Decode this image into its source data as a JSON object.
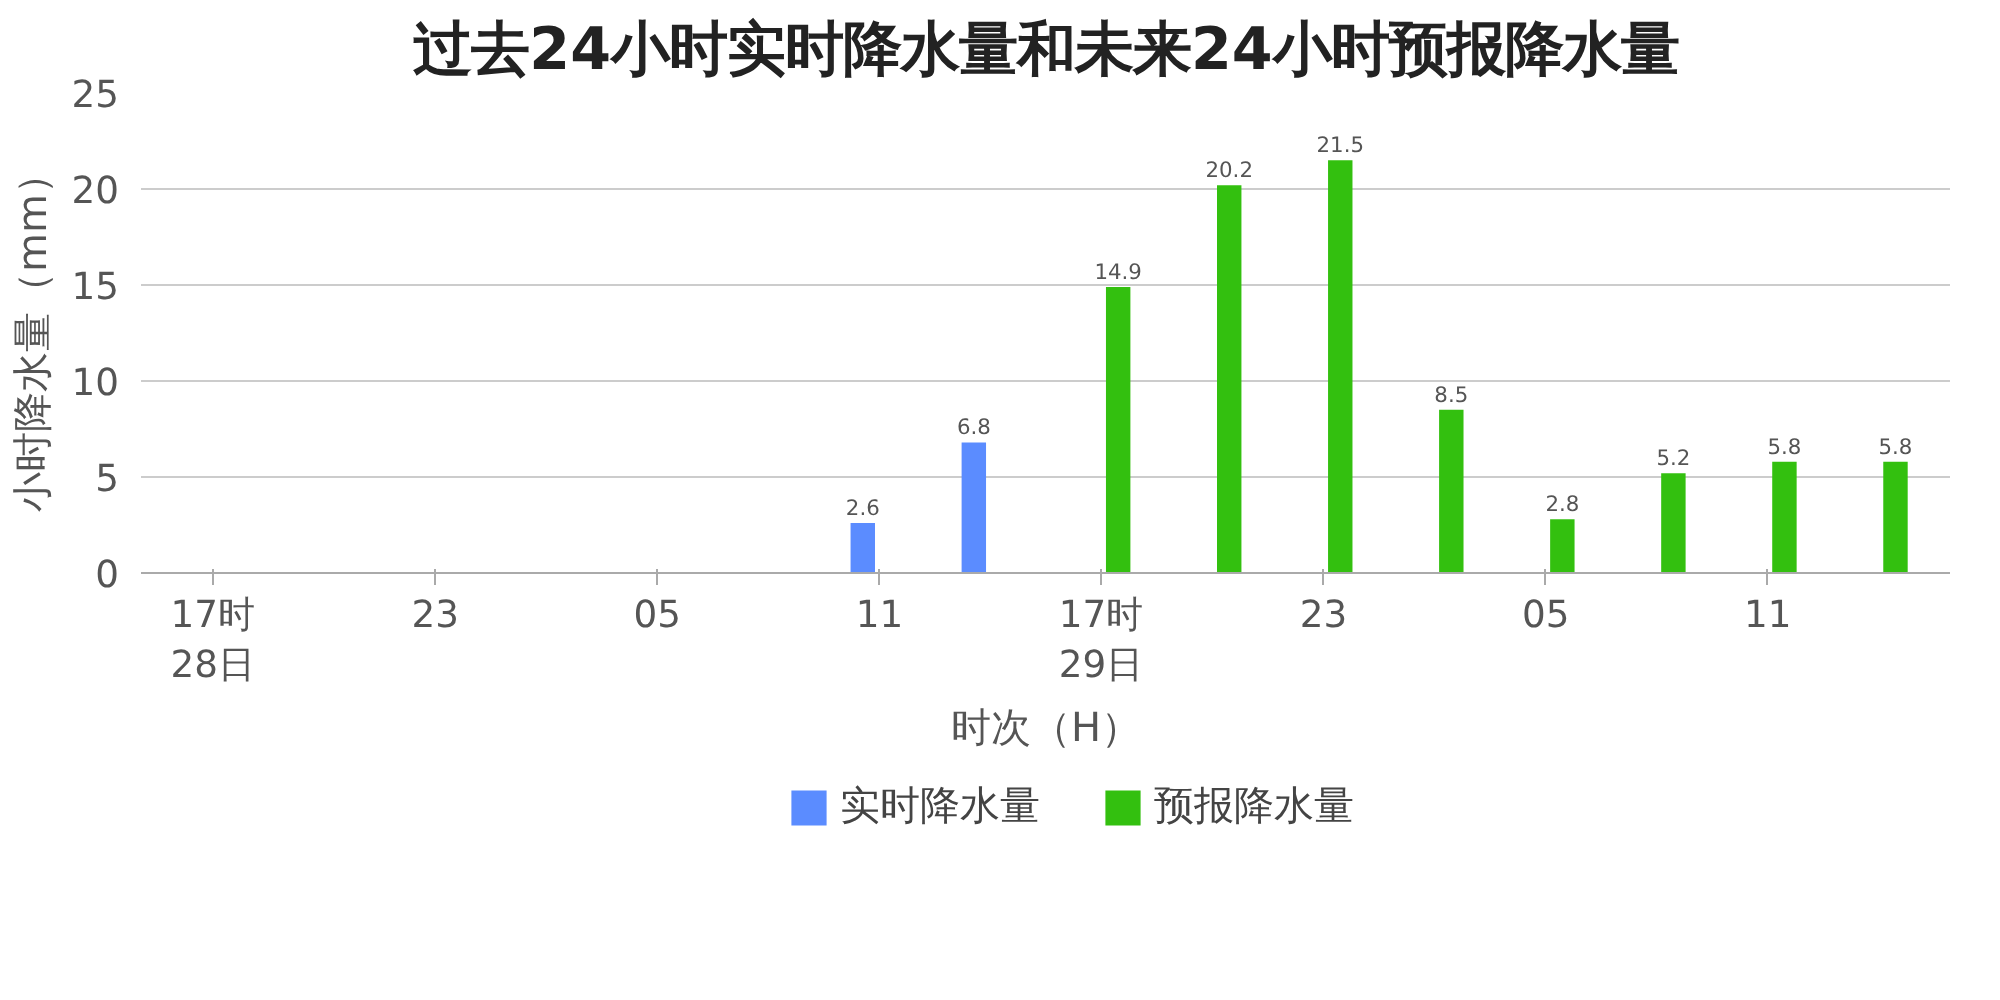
{
  "chart_data": {
    "type": "bar",
    "title": "过去24小时实时降水量和未来24小时预报降水量",
    "xlabel": "时次（H）",
    "ylabel": "小时降水量（mm）",
    "categories": [
      "17时\n28日",
      null,
      "23",
      null,
      "05",
      null,
      "11",
      null,
      "17时\n29日",
      null,
      "23",
      null,
      "05",
      null,
      "11",
      null
    ],
    "series": [
      {
        "name": "实时降水量",
        "color": "#5b8cff",
        "values": [
          null,
          null,
          null,
          null,
          null,
          null,
          2.6,
          6.8,
          null,
          null,
          null,
          null,
          null,
          null,
          null,
          null
        ]
      },
      {
        "name": "预报降水量",
        "color": "#33c00f",
        "values": [
          null,
          null,
          null,
          null,
          null,
          null,
          null,
          null,
          14.9,
          20.2,
          21.5,
          8.5,
          2.8,
          5.2,
          5.8,
          5.8
        ]
      }
    ],
    "ylim": [
      0,
      25
    ],
    "yticks": [
      0,
      5,
      10,
      15,
      20,
      25
    ],
    "grid": "y",
    "legend": "bottom",
    "data_labels": true
  }
}
